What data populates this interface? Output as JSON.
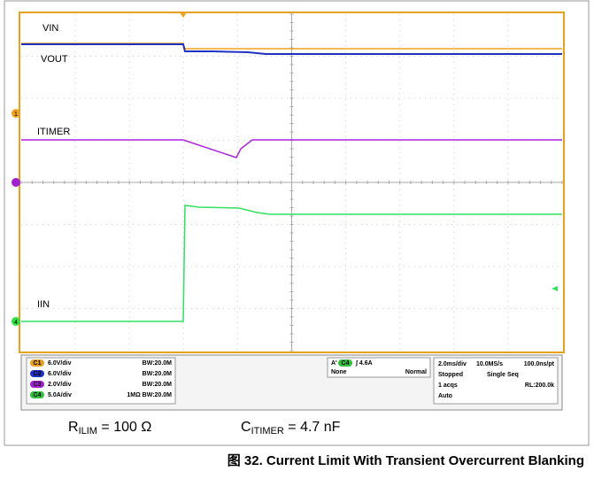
{
  "screen": {
    "trace_labels": [
      "VIN",
      "VOUT",
      "ITIMER",
      "IIN"
    ],
    "channel_markers": [
      "1",
      "4"
    ]
  },
  "status": {
    "channels": [
      {
        "badge": "C1",
        "scale": "6.0V/div",
        "bw": "BW:20.0M"
      },
      {
        "badge": "C2",
        "scale": "6.0V/div",
        "bw": "BW:20.0M"
      },
      {
        "badge": "C3",
        "scale": "2.0V/div",
        "bw": "BW:20.0M"
      },
      {
        "badge": "C4",
        "scale": "5.0A/div",
        "bw": "1MΩ BW:20.0M"
      }
    ],
    "trigger": {
      "source": "A'",
      "badge": "C4",
      "level": "∫ 4.6A",
      "coupling": "None",
      "mode": "Normal"
    },
    "timebase": {
      "row1": [
        "2.0ms/div",
        "10.0MS/s",
        "100.0ns/pt"
      ],
      "row2": [
        "Stopped",
        "Single Seq"
      ],
      "row3": [
        "1 acqs",
        "RL:200.0k"
      ],
      "row4": "Auto"
    }
  },
  "conditions": {
    "r": [
      "R",
      "ILIM",
      " = 100 Ω"
    ],
    "c": [
      "C",
      "ITIMER",
      " = 4.7 nF"
    ]
  },
  "caption": "图 32. Current Limit With Transient Overcurrent Blanking"
}
